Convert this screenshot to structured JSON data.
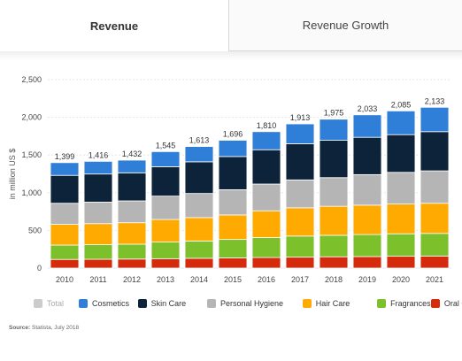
{
  "tabs": [
    {
      "label": "Revenue",
      "active": true
    },
    {
      "label": "Revenue Growth",
      "active": false
    }
  ],
  "source": {
    "prefix": "Source:",
    "text": "Statista, July 2018"
  },
  "chart_data": {
    "type": "bar",
    "stacked": true,
    "title": "",
    "xlabel": "",
    "ylabel": "in million US $",
    "ylim": [
      0,
      2500
    ],
    "yticks": [
      0,
      500,
      1000,
      1500,
      2000,
      2500
    ],
    "ytick_labels": [
      "0",
      "500",
      "1,000",
      "1,500",
      "2,000",
      "2,500"
    ],
    "grid": true,
    "legend_position": "bottom",
    "categories": [
      "2010",
      "2011",
      "2012",
      "2013",
      "2014",
      "2015",
      "2016",
      "2017",
      "2018",
      "2019",
      "2020",
      "2021"
    ],
    "totals": [
      1399,
      1416,
      1432,
      1545,
      1613,
      1696,
      1810,
      1913,
      1975,
      2033,
      2085,
      2133
    ],
    "total_labels": [
      "1,399",
      "1,416",
      "1,432",
      "1,545",
      "1,613",
      "1,696",
      "1,810",
      "1,913",
      "1,975",
      "2,033",
      "2,085",
      "2,133"
    ],
    "legend": [
      {
        "name": "Total",
        "color": "#cccccc"
      },
      {
        "name": "Cosmetics",
        "color": "#2f7ed8"
      },
      {
        "name": "Skin Care",
        "color": "#0d233a"
      },
      {
        "name": "Personal Hygiene",
        "color": "#b5b5b5"
      },
      {
        "name": "Hair Care",
        "color": "#ffaa00"
      },
      {
        "name": "Fragrances",
        "color": "#7cc02c"
      },
      {
        "name": "Oral Care",
        "color": "#d62a0c"
      }
    ],
    "series": [
      {
        "name": "Oral Care",
        "color": "#d62a0c",
        "values": [
          115,
          117,
          120,
          125,
          130,
          135,
          140,
          145,
          150,
          153,
          157,
          160
        ]
      },
      {
        "name": "Fragrances",
        "color": "#7cc02c",
        "values": [
          190,
          193,
          197,
          220,
          230,
          245,
          265,
          280,
          285,
          292,
          298,
          300
        ]
      },
      {
        "name": "Hair Care",
        "color": "#ffaa00",
        "values": [
          275,
          280,
          285,
          300,
          310,
          325,
          355,
          375,
          385,
          390,
          395,
          400
        ]
      },
      {
        "name": "Personal Hygiene",
        "color": "#b5b5b5",
        "values": [
          280,
          285,
          290,
          310,
          320,
          335,
          355,
          370,
          380,
          405,
          420,
          430
        ]
      },
      {
        "name": "Skin Care",
        "color": "#0d233a",
        "values": [
          370,
          373,
          372,
          390,
          420,
          440,
          455,
          480,
          495,
          495,
          500,
          520
        ]
      },
      {
        "name": "Cosmetics",
        "color": "#2f7ed8",
        "values": [
          169,
          168,
          168,
          200,
          203,
          216,
          240,
          263,
          280,
          298,
          315,
          323
        ]
      }
    ]
  }
}
